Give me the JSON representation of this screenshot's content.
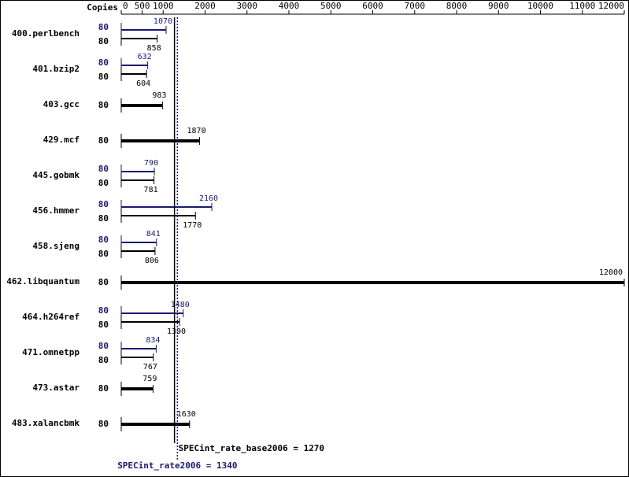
{
  "chart_data": {
    "type": "bar",
    "orientation": "horizontal",
    "copies_label": "Copies",
    "categories": [
      "400.perlbench",
      "401.bzip2",
      "403.gcc",
      "429.mcf",
      "445.gobmk",
      "456.hmmer",
      "458.sjeng",
      "462.libquantum",
      "464.h264ref",
      "471.omnetpp",
      "473.astar",
      "483.xalancbmk"
    ],
    "series": [
      {
        "color": "#191970",
        "values": [
          1070,
          632,
          null,
          null,
          790,
          2160,
          841,
          null,
          1480,
          834,
          null,
          null
        ],
        "copies": [
          80,
          80,
          null,
          null,
          80,
          80,
          80,
          null,
          80,
          80,
          null,
          null
        ]
      },
      {
        "color": "#000000",
        "values": [
          858,
          604,
          983,
          1870,
          781,
          1770,
          806,
          12000,
          1390,
          767,
          759,
          1630
        ],
        "copies": [
          80,
          80,
          80,
          80,
          80,
          80,
          80,
          80,
          80,
          80,
          80,
          80
        ]
      }
    ],
    "xlim": [
      0,
      12000
    ],
    "xticks": [
      0,
      500,
      1000,
      2000,
      3000,
      4000,
      5000,
      6000,
      7000,
      8000,
      9000,
      10000,
      11000,
      12000
    ],
    "reference_lines": [
      {
        "label": "SPECint_rate_base2006 = 1270",
        "value": 1270,
        "color": "#000000",
        "style": "solid"
      },
      {
        "label": "SPECint_rate2006 = 1340",
        "value": 1340,
        "color": "#191970",
        "style": "dotted"
      }
    ]
  }
}
